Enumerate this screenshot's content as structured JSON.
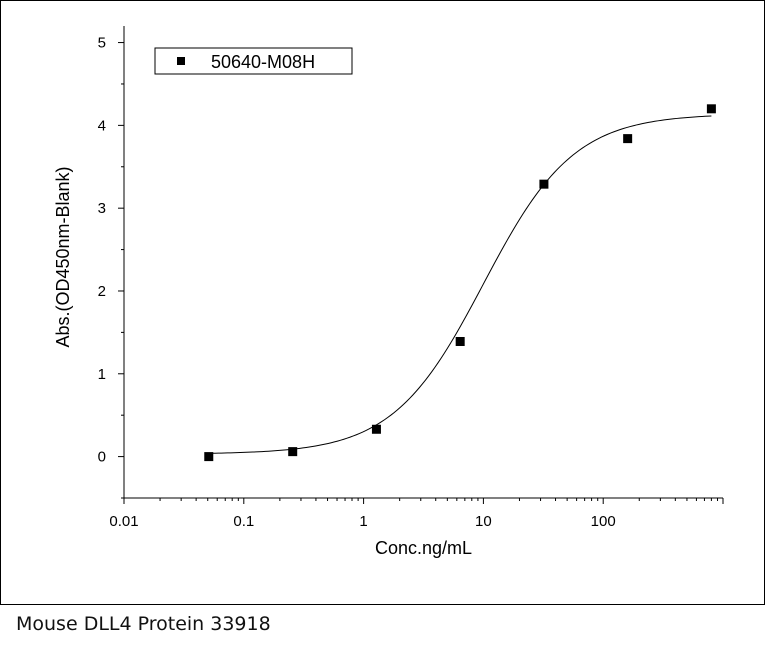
{
  "caption": "Mouse DLL4 Protein 33918",
  "chart_data": {
    "type": "scatter",
    "xlabel": "Conc.ng/mL",
    "ylabel": "Abs.(OD450nm-Blank)",
    "xscale": "log",
    "xlim": [
      0.01,
      1000
    ],
    "ylim": [
      -0.5,
      5.2
    ],
    "xticks": [
      {
        "value": 0.01,
        "label": "0.01"
      },
      {
        "value": 0.1,
        "label": "0.1"
      },
      {
        "value": 1,
        "label": "1"
      },
      {
        "value": 10,
        "label": "10"
      },
      {
        "value": 100,
        "label": "100"
      }
    ],
    "yticks": [
      {
        "value": 0,
        "label": "0"
      },
      {
        "value": 1,
        "label": "1"
      },
      {
        "value": 2,
        "label": "2"
      },
      {
        "value": 3,
        "label": "3"
      },
      {
        "value": 4,
        "label": "4"
      },
      {
        "value": 5,
        "label": "5"
      }
    ],
    "legend_position": "top-left",
    "grid": false,
    "series": [
      {
        "name": "50640-M08H",
        "marker": "square",
        "color": "#000000",
        "x": [
          0.051,
          0.256,
          1.28,
          6.4,
          32,
          160,
          800
        ],
        "y": [
          0.0,
          0.06,
          0.33,
          1.39,
          3.29,
          3.84,
          4.2
        ]
      }
    ],
    "fit_curve": {
      "model": "4PL",
      "bottom": 0.03,
      "top": 4.14,
      "ec50": 10,
      "hill": 1.15,
      "color": "#000000"
    }
  }
}
